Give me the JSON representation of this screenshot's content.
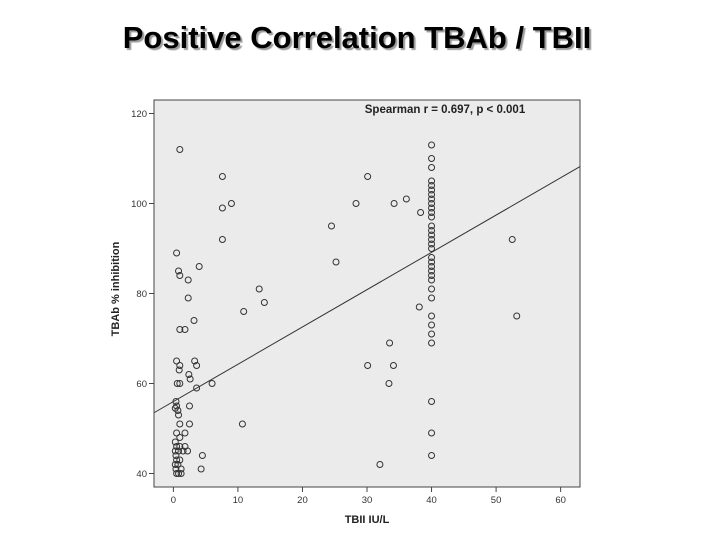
{
  "slide": {
    "title": "Positive Correlation TBAb / TBII"
  },
  "chart_data": {
    "type": "scatter",
    "title": "",
    "annotation": "Spearman r = 0.697, p < 0.001",
    "xlabel": "TBII IU/L",
    "ylabel": "TBAb % inhibition",
    "xlim": [
      -3,
      63
    ],
    "ylim": [
      37,
      123
    ],
    "xticks": [
      0,
      10,
      20,
      30,
      40,
      50,
      60
    ],
    "yticks": [
      40,
      60,
      80,
      100,
      120
    ],
    "grid": false,
    "background": "#ebebeb",
    "marker_color": "#333333",
    "line_color": "#333333",
    "fit_line": {
      "x": [
        -3,
        63
      ],
      "y": [
        53.5,
        108.2
      ]
    },
    "points": [
      {
        "x": 1,
        "y": 112
      },
      {
        "x": 0.5,
        "y": 89
      },
      {
        "x": 0.8,
        "y": 85
      },
      {
        "x": 1,
        "y": 84
      },
      {
        "x": 2.3,
        "y": 83
      },
      {
        "x": 4,
        "y": 86
      },
      {
        "x": 2.3,
        "y": 79
      },
      {
        "x": 1,
        "y": 72
      },
      {
        "x": 1.8,
        "y": 72
      },
      {
        "x": 3.2,
        "y": 74
      },
      {
        "x": 0.5,
        "y": 65
      },
      {
        "x": 1,
        "y": 64
      },
      {
        "x": 3.3,
        "y": 65
      },
      {
        "x": 3.6,
        "y": 64
      },
      {
        "x": 0.9,
        "y": 63
      },
      {
        "x": 2.4,
        "y": 62
      },
      {
        "x": 2.6,
        "y": 61
      },
      {
        "x": 0.6,
        "y": 60
      },
      {
        "x": 1,
        "y": 60
      },
      {
        "x": 6,
        "y": 60
      },
      {
        "x": 3.6,
        "y": 59
      },
      {
        "x": 0.4,
        "y": 56
      },
      {
        "x": 0.5,
        "y": 55
      },
      {
        "x": 0.3,
        "y": 54.5
      },
      {
        "x": 0.7,
        "y": 54
      },
      {
        "x": 0.8,
        "y": 53
      },
      {
        "x": 2.5,
        "y": 55
      },
      {
        "x": 1,
        "y": 51
      },
      {
        "x": 2.5,
        "y": 51
      },
      {
        "x": 0.5,
        "y": 49
      },
      {
        "x": 1,
        "y": 48
      },
      {
        "x": 1.8,
        "y": 49
      },
      {
        "x": 0.3,
        "y": 47
      },
      {
        "x": 0.5,
        "y": 46
      },
      {
        "x": 1,
        "y": 46
      },
      {
        "x": 1.8,
        "y": 46
      },
      {
        "x": 0.3,
        "y": 45
      },
      {
        "x": 0.8,
        "y": 45
      },
      {
        "x": 1.5,
        "y": 45
      },
      {
        "x": 2.2,
        "y": 45
      },
      {
        "x": 0.4,
        "y": 44
      },
      {
        "x": 0.5,
        "y": 43
      },
      {
        "x": 1,
        "y": 43
      },
      {
        "x": 4.5,
        "y": 44
      },
      {
        "x": 0.3,
        "y": 42
      },
      {
        "x": 0.7,
        "y": 42
      },
      {
        "x": 0.4,
        "y": 41
      },
      {
        "x": 1.2,
        "y": 41
      },
      {
        "x": 4.3,
        "y": 41
      },
      {
        "x": 0.5,
        "y": 40
      },
      {
        "x": 0.8,
        "y": 40
      },
      {
        "x": 1.2,
        "y": 40
      },
      {
        "x": 7.6,
        "y": 106
      },
      {
        "x": 7.6,
        "y": 99
      },
      {
        "x": 9,
        "y": 100
      },
      {
        "x": 7.6,
        "y": 92
      },
      {
        "x": 13.3,
        "y": 81
      },
      {
        "x": 14.1,
        "y": 78
      },
      {
        "x": 10.9,
        "y": 76
      },
      {
        "x": 10.7,
        "y": 51
      },
      {
        "x": 24.5,
        "y": 95
      },
      {
        "x": 25.2,
        "y": 87
      },
      {
        "x": 28.3,
        "y": 100
      },
      {
        "x": 30.1,
        "y": 106
      },
      {
        "x": 34.2,
        "y": 100
      },
      {
        "x": 36.1,
        "y": 101
      },
      {
        "x": 38.3,
        "y": 98
      },
      {
        "x": 38.1,
        "y": 77
      },
      {
        "x": 33.5,
        "y": 69
      },
      {
        "x": 30.1,
        "y": 64
      },
      {
        "x": 34.1,
        "y": 64
      },
      {
        "x": 33.4,
        "y": 60
      },
      {
        "x": 32,
        "y": 42
      },
      {
        "x": 40,
        "y": 113
      },
      {
        "x": 40,
        "y": 110
      },
      {
        "x": 40,
        "y": 108
      },
      {
        "x": 40,
        "y": 105
      },
      {
        "x": 40,
        "y": 104
      },
      {
        "x": 40,
        "y": 103
      },
      {
        "x": 40,
        "y": 102
      },
      {
        "x": 40,
        "y": 101
      },
      {
        "x": 40,
        "y": 100
      },
      {
        "x": 40,
        "y": 99
      },
      {
        "x": 40,
        "y": 98
      },
      {
        "x": 40,
        "y": 97
      },
      {
        "x": 40,
        "y": 95
      },
      {
        "x": 40,
        "y": 94
      },
      {
        "x": 40,
        "y": 93
      },
      {
        "x": 40,
        "y": 92
      },
      {
        "x": 40,
        "y": 91
      },
      {
        "x": 40,
        "y": 90
      },
      {
        "x": 40,
        "y": 88
      },
      {
        "x": 40,
        "y": 87
      },
      {
        "x": 40,
        "y": 86
      },
      {
        "x": 40,
        "y": 85
      },
      {
        "x": 40,
        "y": 84
      },
      {
        "x": 40,
        "y": 83
      },
      {
        "x": 40,
        "y": 81
      },
      {
        "x": 40,
        "y": 79
      },
      {
        "x": 40,
        "y": 75
      },
      {
        "x": 40,
        "y": 73
      },
      {
        "x": 40,
        "y": 71
      },
      {
        "x": 40,
        "y": 69
      },
      {
        "x": 40,
        "y": 56
      },
      {
        "x": 40,
        "y": 49
      },
      {
        "x": 40,
        "y": 44
      },
      {
        "x": 52.5,
        "y": 92
      },
      {
        "x": 53.2,
        "y": 75
      }
    ]
  }
}
